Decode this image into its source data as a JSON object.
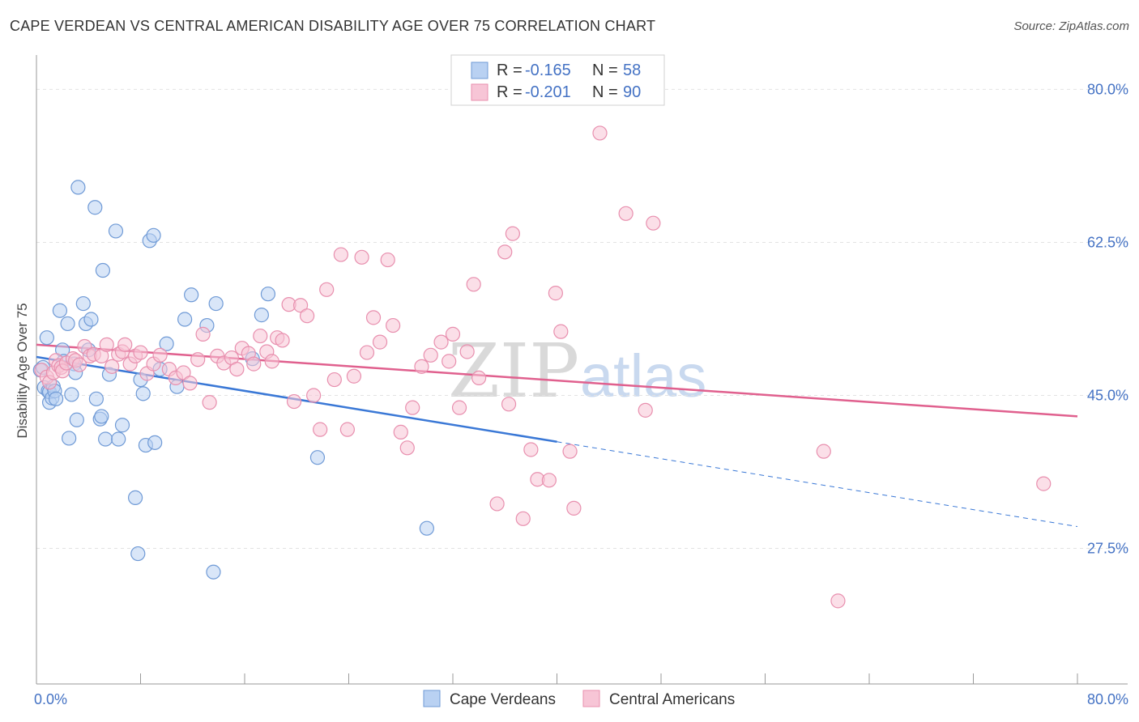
{
  "header": {
    "title": "CAPE VERDEAN VS CENTRAL AMERICAN DISABILITY AGE OVER 75 CORRELATION CHART",
    "source": "Source: ZipAtlas.com"
  },
  "legend": {
    "r_label": "R =",
    "n_label": "N =",
    "series": [
      {
        "name": "Cape Verdeans",
        "r": "-0.165",
        "n": "58",
        "fill": "#b9d1f2",
        "stroke": "#6f9ad6"
      },
      {
        "name": "Central Americans",
        "r": "-0.201",
        "n": "90",
        "fill": "#f7c5d6",
        "stroke": "#e88fae"
      }
    ]
  },
  "watermark": {
    "zip": "ZIP",
    "atlas": "atlas"
  },
  "colors": {
    "blue_line": "#3a78d6",
    "pink_line": "#e0608e",
    "grid": "#e3e3e3",
    "axis": "#999999"
  },
  "chart_data": {
    "type": "scatter",
    "title": "CAPE VERDEAN VS CENTRAL AMERICAN DISABILITY AGE OVER 75 CORRELATION CHART",
    "xlabel": "",
    "ylabel": "Disability Age Over 75",
    "xlim": [
      0,
      80
    ],
    "ylim": [
      12,
      83
    ],
    "x_tick_labels": [
      {
        "value": 0,
        "label": "0.0%"
      },
      {
        "value": 80,
        "label": "80.0%"
      }
    ],
    "y_tick_labels": [
      {
        "value": 80,
        "label": "80.0%"
      },
      {
        "value": 62.5,
        "label": "62.5%"
      },
      {
        "value": 45,
        "label": "45.0%"
      },
      {
        "value": 27.5,
        "label": "27.5%"
      }
    ],
    "grid": true,
    "legend_position": "top-center",
    "series": [
      {
        "name": "Cape Verdeans",
        "color": "#6f9ad6",
        "trend": {
          "x0": 0,
          "y0": 49.4,
          "x1": 40,
          "y1": 39.7,
          "dashed_to_x": 80,
          "dashed_to_y": 30.0
        },
        "points": [
          [
            0.3,
            47.9
          ],
          [
            0.5,
            48.2
          ],
          [
            0.6,
            45.9
          ],
          [
            0.8,
            51.6
          ],
          [
            0.9,
            45.5
          ],
          [
            1.0,
            44.2
          ],
          [
            1.0,
            45.4
          ],
          [
            1.2,
            44.7
          ],
          [
            1.3,
            46.0
          ],
          [
            1.4,
            45.5
          ],
          [
            1.5,
            44.6
          ],
          [
            1.8,
            54.7
          ],
          [
            2.0,
            50.2
          ],
          [
            2.1,
            48.9
          ],
          [
            2.4,
            53.2
          ],
          [
            2.5,
            40.1
          ],
          [
            2.7,
            45.1
          ],
          [
            2.9,
            48.6
          ],
          [
            3.0,
            47.6
          ],
          [
            3.1,
            42.2
          ],
          [
            3.2,
            68.8
          ],
          [
            3.6,
            55.5
          ],
          [
            3.8,
            53.2
          ],
          [
            4.0,
            50.2
          ],
          [
            4.2,
            53.7
          ],
          [
            4.5,
            66.5
          ],
          [
            4.6,
            44.6
          ],
          [
            4.9,
            42.3
          ],
          [
            5.0,
            42.6
          ],
          [
            5.1,
            59.3
          ],
          [
            5.3,
            40.0
          ],
          [
            5.6,
            47.4
          ],
          [
            6.1,
            63.8
          ],
          [
            6.3,
            40.0
          ],
          [
            6.6,
            41.6
          ],
          [
            7.6,
            33.3
          ],
          [
            7.8,
            26.9
          ],
          [
            8.0,
            46.8
          ],
          [
            8.2,
            45.2
          ],
          [
            8.4,
            39.3
          ],
          [
            8.7,
            62.7
          ],
          [
            9.0,
            63.3
          ],
          [
            9.1,
            39.6
          ],
          [
            9.5,
            48.0
          ],
          [
            10.0,
            50.9
          ],
          [
            10.8,
            46.0
          ],
          [
            11.4,
            53.7
          ],
          [
            11.9,
            56.5
          ],
          [
            13.1,
            53.0
          ],
          [
            13.6,
            24.8
          ],
          [
            13.8,
            55.5
          ],
          [
            16.6,
            49.2
          ],
          [
            17.3,
            54.2
          ],
          [
            17.8,
            56.6
          ],
          [
            21.6,
            37.9
          ],
          [
            30.0,
            29.8
          ]
        ]
      },
      {
        "name": "Central Americans",
        "color": "#e88fae",
        "trend": {
          "x0": 0,
          "y0": 50.8,
          "x1": 80,
          "y1": 42.6
        },
        "points": [
          [
            0.4,
            47.9
          ],
          [
            0.8,
            47.1
          ],
          [
            1.0,
            46.5
          ],
          [
            1.3,
            47.6
          ],
          [
            1.5,
            49.0
          ],
          [
            1.7,
            48.4
          ],
          [
            1.9,
            48.2
          ],
          [
            2.0,
            47.8
          ],
          [
            2.3,
            48.7
          ],
          [
            2.8,
            49.2
          ],
          [
            3.0,
            49.0
          ],
          [
            3.3,
            48.5
          ],
          [
            3.7,
            50.6
          ],
          [
            4.1,
            49.5
          ],
          [
            4.4,
            49.7
          ],
          [
            5.0,
            49.5
          ],
          [
            5.4,
            50.8
          ],
          [
            5.8,
            48.3
          ],
          [
            6.3,
            49.7
          ],
          [
            6.6,
            50.0
          ],
          [
            6.8,
            50.8
          ],
          [
            7.2,
            48.6
          ],
          [
            7.6,
            49.5
          ],
          [
            8.0,
            49.9
          ],
          [
            8.5,
            47.5
          ],
          [
            9.0,
            48.6
          ],
          [
            9.5,
            49.6
          ],
          [
            10.2,
            48.0
          ],
          [
            10.7,
            47.0
          ],
          [
            11.3,
            47.6
          ],
          [
            11.8,
            46.4
          ],
          [
            12.4,
            49.1
          ],
          [
            12.8,
            52.0
          ],
          [
            13.3,
            44.2
          ],
          [
            13.9,
            49.5
          ],
          [
            14.4,
            48.7
          ],
          [
            15.0,
            49.3
          ],
          [
            15.4,
            48.0
          ],
          [
            15.8,
            50.4
          ],
          [
            16.3,
            49.8
          ],
          [
            16.7,
            48.6
          ],
          [
            17.2,
            51.8
          ],
          [
            17.7,
            50.0
          ],
          [
            18.1,
            48.9
          ],
          [
            18.5,
            51.6
          ],
          [
            18.9,
            51.3
          ],
          [
            19.4,
            55.4
          ],
          [
            19.8,
            44.3
          ],
          [
            20.3,
            55.3
          ],
          [
            20.8,
            54.1
          ],
          [
            21.3,
            45.0
          ],
          [
            21.8,
            41.1
          ],
          [
            22.3,
            57.1
          ],
          [
            22.9,
            46.8
          ],
          [
            23.4,
            61.1
          ],
          [
            23.9,
            41.1
          ],
          [
            24.4,
            47.2
          ],
          [
            25.0,
            60.8
          ],
          [
            25.4,
            49.9
          ],
          [
            25.9,
            53.9
          ],
          [
            26.4,
            51.1
          ],
          [
            27.0,
            60.5
          ],
          [
            27.4,
            53.0
          ],
          [
            28.0,
            40.8
          ],
          [
            28.5,
            39.0
          ],
          [
            28.9,
            43.6
          ],
          [
            29.6,
            48.3
          ],
          [
            30.3,
            49.6
          ],
          [
            31.1,
            51.1
          ],
          [
            31.7,
            48.9
          ],
          [
            32.0,
            52.0
          ],
          [
            32.5,
            43.6
          ],
          [
            33.1,
            50.0
          ],
          [
            33.6,
            57.7
          ],
          [
            34.0,
            47.0
          ],
          [
            35.4,
            32.6
          ],
          [
            36.0,
            61.4
          ],
          [
            36.3,
            44.0
          ],
          [
            36.6,
            63.5
          ],
          [
            37.4,
            30.9
          ],
          [
            38.0,
            38.8
          ],
          [
            38.5,
            35.4
          ],
          [
            39.4,
            35.3
          ],
          [
            39.9,
            56.7
          ],
          [
            40.3,
            52.3
          ],
          [
            41.0,
            38.6
          ],
          [
            41.3,
            32.1
          ],
          [
            43.3,
            75.0
          ],
          [
            45.3,
            65.8
          ],
          [
            46.8,
            43.3
          ],
          [
            47.4,
            64.7
          ],
          [
            60.5,
            38.6
          ],
          [
            61.6,
            21.5
          ],
          [
            77.4,
            34.9
          ]
        ]
      }
    ]
  }
}
